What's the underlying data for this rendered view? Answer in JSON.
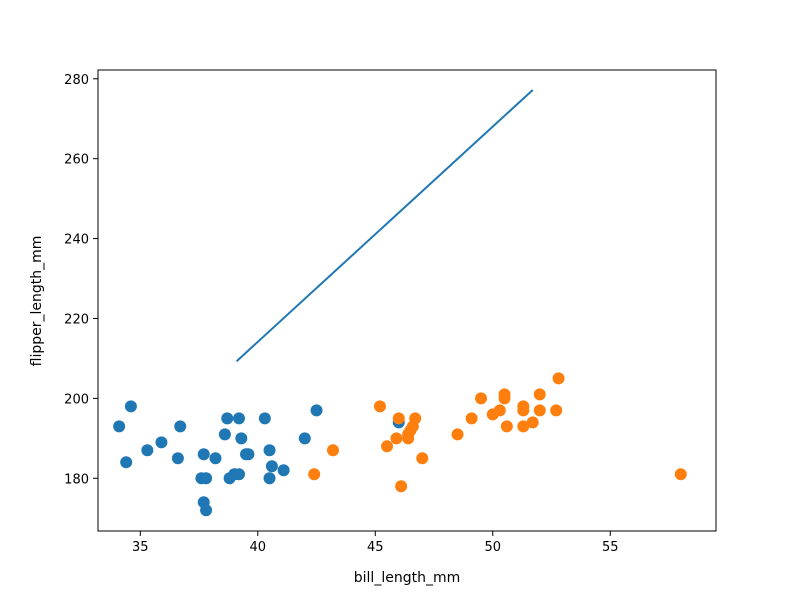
{
  "chart_data": {
    "type": "scatter",
    "xlabel": "bill_length_mm",
    "ylabel": "flipper_length_mm",
    "xlim": [
      33.2,
      59.5
    ],
    "ylim": [
      166.8,
      282.2
    ],
    "xticks": [
      35,
      40,
      45,
      50,
      55
    ],
    "yticks": [
      180,
      200,
      220,
      240,
      260,
      280
    ],
    "grid": false,
    "colors": {
      "series_a": "#1f77b4",
      "series_b": "#ff7f0e",
      "line": "#1f77b4"
    },
    "line": {
      "x": [
        39.1,
        51.7
      ],
      "y": [
        209.3,
        277.2
      ]
    },
    "series": [
      {
        "points": [
          [
            34.1,
            193
          ],
          [
            34.4,
            184
          ],
          [
            34.6,
            198
          ],
          [
            35.3,
            187
          ],
          [
            35.9,
            189
          ],
          [
            36.6,
            185
          ],
          [
            36.7,
            193
          ],
          [
            37.6,
            180
          ],
          [
            37.7,
            174
          ],
          [
            37.7,
            186
          ],
          [
            37.8,
            172
          ],
          [
            37.8,
            180
          ],
          [
            38.2,
            185
          ],
          [
            38.6,
            191
          ],
          [
            38.7,
            195
          ],
          [
            38.8,
            180
          ],
          [
            39.0,
            181
          ],
          [
            39.2,
            181
          ],
          [
            39.2,
            195
          ],
          [
            39.3,
            190
          ],
          [
            39.5,
            186
          ],
          [
            39.6,
            186
          ],
          [
            40.3,
            195
          ],
          [
            40.5,
            180
          ],
          [
            40.5,
            187
          ],
          [
            40.6,
            183
          ],
          [
            41.1,
            182
          ],
          [
            42.0,
            190
          ],
          [
            42.5,
            197
          ],
          [
            46.0,
            194
          ]
        ]
      },
      {
        "points": [
          [
            42.4,
            181
          ],
          [
            43.2,
            187
          ],
          [
            45.2,
            198
          ],
          [
            45.5,
            188
          ],
          [
            45.9,
            190
          ],
          [
            46.0,
            195
          ],
          [
            46.1,
            178
          ],
          [
            46.4,
            191
          ],
          [
            46.4,
            190
          ],
          [
            46.5,
            192
          ],
          [
            46.6,
            193
          ],
          [
            46.7,
            195
          ],
          [
            47.0,
            185
          ],
          [
            48.5,
            191
          ],
          [
            49.1,
            195
          ],
          [
            49.5,
            200
          ],
          [
            50.0,
            196
          ],
          [
            50.3,
            197
          ],
          [
            50.5,
            200
          ],
          [
            50.5,
            201
          ],
          [
            50.6,
            193
          ],
          [
            51.3,
            197
          ],
          [
            51.3,
            198
          ],
          [
            51.3,
            193
          ],
          [
            51.7,
            194
          ],
          [
            52.0,
            197
          ],
          [
            52.0,
            201
          ],
          [
            52.7,
            197
          ],
          [
            52.8,
            205
          ],
          [
            58.0,
            181
          ]
        ]
      }
    ]
  }
}
